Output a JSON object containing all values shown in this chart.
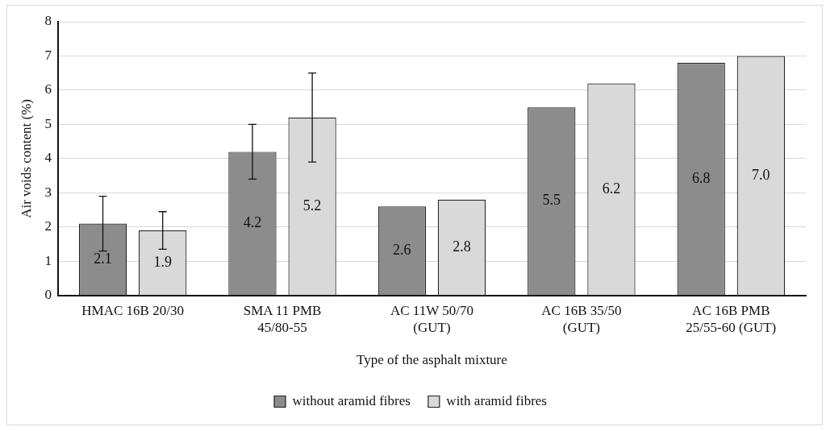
{
  "chart_data": {
    "type": "bar",
    "xlabel": "Type of the asphalt mixture",
    "ylabel": "Air voids content (%)",
    "categories": [
      "HMAC 16B 20/30",
      "SMA 11 PMB 45/80-55",
      "AC 11W 50/70 (GUT)",
      "AC 16B 35/50 (GUT)",
      "AC 16B PMB 25/55-60 (GUT)"
    ],
    "series": [
      {
        "name": "without aramid fibres",
        "color": "#8c8c8c",
        "values": [
          2.1,
          4.2,
          2.6,
          5.5,
          6.8
        ],
        "value_labels": [
          "2.1",
          "4.2",
          "2.6",
          "5.5",
          "6.8"
        ],
        "errors": [
          0.8,
          0.8,
          null,
          null,
          null
        ]
      },
      {
        "name": "with aramid fibres",
        "color": "#d9d9d9",
        "values": [
          1.9,
          5.2,
          2.8,
          6.2,
          7.0
        ],
        "value_labels": [
          "1.9",
          "5.2",
          "2.8",
          "6.2",
          "7.0"
        ],
        "errors": [
          0.55,
          1.3,
          null,
          null,
          null
        ]
      }
    ],
    "ylim": [
      0,
      8
    ],
    "yticks": [
      0,
      1,
      2,
      3,
      4,
      5,
      6,
      7,
      8
    ],
    "grid": "y",
    "legend": "bottom"
  }
}
